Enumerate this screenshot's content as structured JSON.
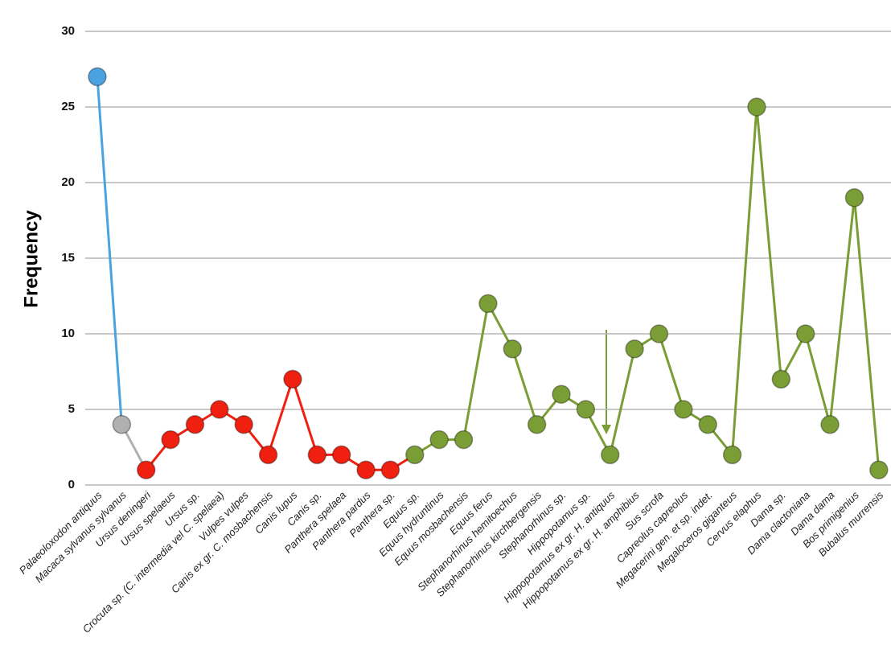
{
  "chart_data": {
    "type": "line",
    "y_label": "Frequency",
    "categories": [
      "Palaeoloxodon antiquus",
      "Macaca sylvanus sylvanus",
      "Ursus deningeri",
      "Ursus spelaeus",
      "Ursus sp.",
      "Crocuta sp. (C. intermedia vel C. spelaea)",
      "Vulpes vulpes",
      "Canis ex gr. C. mosbachensis",
      "Canis lupus",
      "Canis sp.",
      "Panthera spelaea",
      "Panthera pardus",
      "Panthera sp.",
      "Equus sp.",
      "Equus hydruntinus",
      "Equus mosbachensis",
      "Equus ferus",
      "Stephanorhinus hemitoechus",
      "Stephanorhinus kirchbergensis",
      "Stephanorhinus sp.",
      "Hippopotamus sp.",
      "Hippopotamus ex gr. H. antiquus",
      "Hippopotamus ex gr. H. amphibius",
      "Sus scrofa",
      "Capreolus capreolus",
      "Megacerini gen. et sp. indet.",
      "Megaloceros giganteus",
      "Cervus elaphus",
      "Dama sp.",
      "Dama clactoniana",
      "Dama dama",
      "Bos primigenius",
      "Bubalus murrensis"
    ],
    "series": [
      {
        "values": [
          27,
          4,
          1,
          3,
          4,
          5,
          4,
          2,
          7,
          2,
          2,
          1,
          1,
          2,
          3,
          3,
          12,
          9,
          4,
          6,
          5,
          2,
          9,
          10,
          5,
          4,
          2,
          25,
          7,
          10,
          4,
          19,
          1
        ],
        "colors": [
          "#4aa3e0",
          "#b0b0b0",
          "#f02010",
          "#f02010",
          "#f02010",
          "#f02010",
          "#f02010",
          "#f02010",
          "#f02010",
          "#f02010",
          "#f02010",
          "#f02010",
          "#f02010",
          "#7a9e35",
          "#7a9e35",
          "#7a9e35",
          "#7a9e35",
          "#7a9e35",
          "#7a9e35",
          "#7a9e35",
          "#7a9e35",
          "#7a9e35",
          "#7a9e35",
          "#7a9e35",
          "#7a9e35",
          "#7a9e35",
          "#7a9e35",
          "#7a9e35",
          "#7a9e35",
          "#7a9e35",
          "#7a9e35",
          "#7a9e35",
          "#7a9e35"
        ]
      }
    ],
    "ylim": [
      0,
      30
    ],
    "yticks": [
      0,
      5,
      10,
      15,
      20,
      25,
      30
    ],
    "grid": true
  }
}
